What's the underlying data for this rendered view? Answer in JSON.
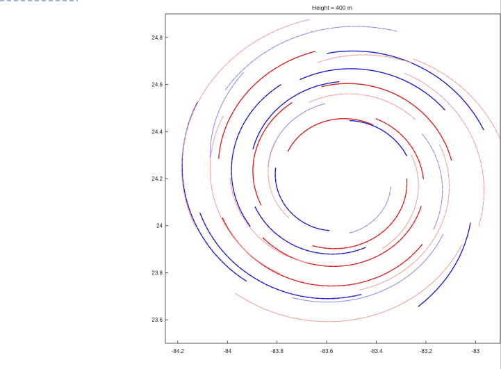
{
  "chart_data": {
    "type": "scatter",
    "title": "Height = 400 m",
    "xlabel": "",
    "ylabel": "",
    "xlim": [
      -84.25,
      -82.9
    ],
    "ylim": [
      23.5,
      24.9
    ],
    "x_ticks": [
      "-84.2",
      "-84",
      "-83.8",
      "-83.6",
      "-83.4",
      "-83.2",
      "-83"
    ],
    "y_ticks": [
      "23.6",
      "23.8",
      "24",
      "24.2",
      "24.4",
      "24.6",
      "24.8"
    ],
    "grid": false,
    "legend": "none",
    "center": {
      "lon": -83.55,
      "lat": 24.2
    },
    "colors": {
      "blue": "#1a1acc",
      "light_blue": "#8c8cf0",
      "red": "#d81e1e",
      "pink": "#f0a0a0"
    },
    "series": [
      {
        "color": "blue",
        "arcs": [
          {
            "r": 0.66,
            "start": 150,
            "end": 230
          },
          {
            "r": 0.62,
            "start": 20,
            "end": 95
          },
          {
            "r": 0.58,
            "start": 195,
            "end": 280
          },
          {
            "r": 0.52,
            "start": 35,
            "end": 110
          },
          {
            "r": 0.47,
            "start": 120,
            "end": 210
          },
          {
            "r": 0.42,
            "start": 90,
            "end": 160
          },
          {
            "r": 0.36,
            "start": 200,
            "end": 290
          },
          {
            "r": 0.29,
            "start": 20,
            "end": 80
          },
          {
            "r": 0.26,
            "start": 170,
            "end": 260
          },
          {
            "r": 0.64,
            "start": 300,
            "end": 340
          }
        ]
      },
      {
        "color": "light_blue",
        "arcs": [
          {
            "r": 0.68,
            "start": 70,
            "end": 140
          },
          {
            "r": 0.55,
            "start": 250,
            "end": 330
          },
          {
            "r": 0.44,
            "start": 330,
            "end": 30
          },
          {
            "r": 0.33,
            "start": 100,
            "end": 170
          },
          {
            "r": 0.24,
            "start": 280,
            "end": 350
          },
          {
            "r": 0.6,
            "start": 130,
            "end": 170
          }
        ]
      },
      {
        "color": "red",
        "arcs": [
          {
            "r": 0.5,
            "start": 200,
            "end": 320
          },
          {
            "r": 0.46,
            "start": 10,
            "end": 100
          },
          {
            "r": 0.4,
            "start": 220,
            "end": 340
          },
          {
            "r": 0.38,
            "start": 120,
            "end": 200
          },
          {
            "r": 0.31,
            "start": 250,
            "end": 360
          },
          {
            "r": 0.27,
            "start": 60,
            "end": 150
          },
          {
            "r": 0.34,
            "start": 0,
            "end": 60
          },
          {
            "r": 0.56,
            "start": 100,
            "end": 170
          }
        ]
      },
      {
        "color": "pink",
        "arcs": [
          {
            "r": 0.7,
            "start": 100,
            "end": 200
          },
          {
            "r": 0.65,
            "start": 230,
            "end": 330
          },
          {
            "r": 0.6,
            "start": 340,
            "end": 60
          },
          {
            "r": 0.54,
            "start": 150,
            "end": 240
          },
          {
            "r": 0.49,
            "start": 280,
            "end": 20
          },
          {
            "r": 0.44,
            "start": 180,
            "end": 250
          },
          {
            "r": 0.4,
            "start": 40,
            "end": 110
          },
          {
            "r": 0.35,
            "start": 300,
            "end": 20
          },
          {
            "r": 0.3,
            "start": 150,
            "end": 220
          },
          {
            "r": 0.58,
            "start": 60,
            "end": 100
          },
          {
            "r": 0.68,
            "start": 10,
            "end": 60
          }
        ]
      }
    ]
  }
}
